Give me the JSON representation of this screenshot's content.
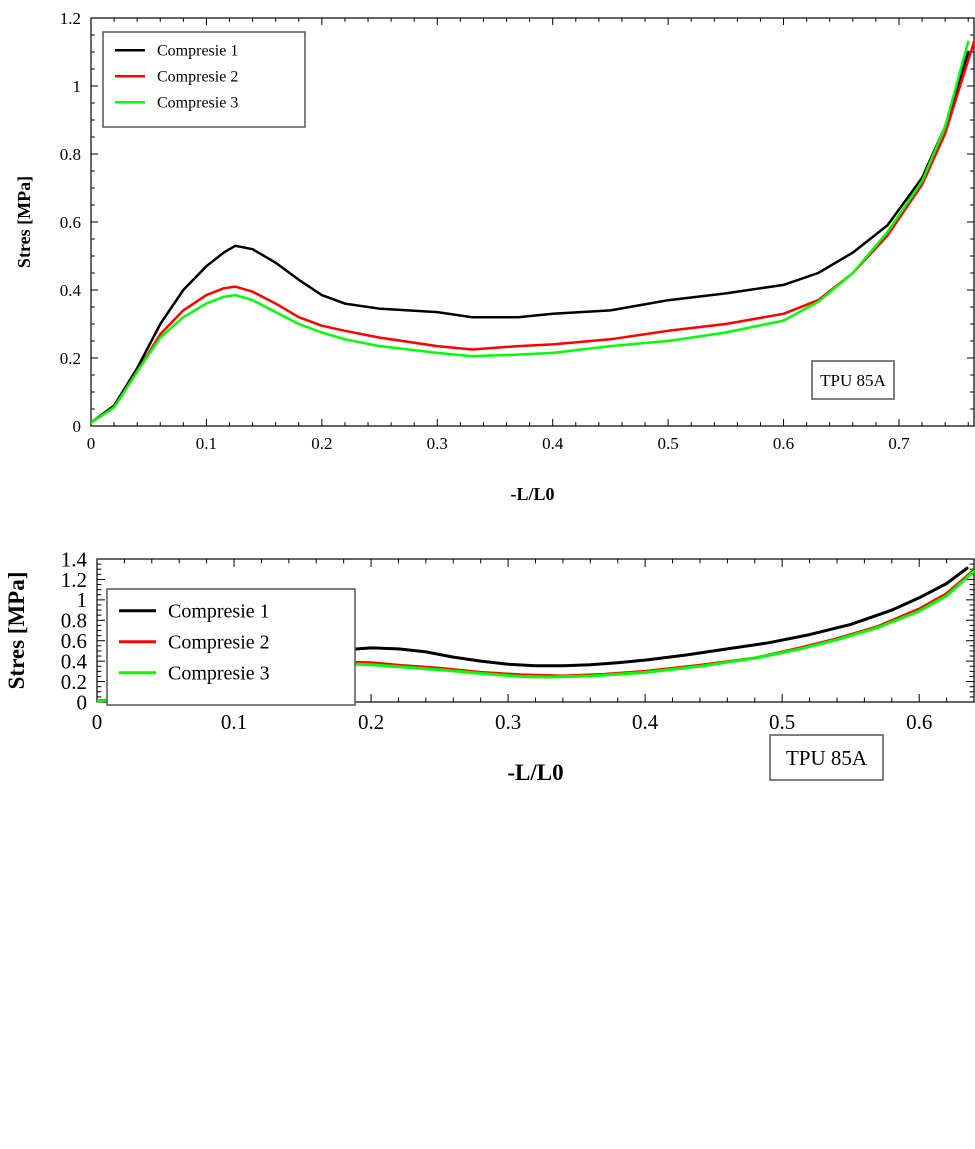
{
  "chart_data": [
    {
      "type": "line",
      "title": "",
      "xlabel": "-L/L0",
      "ylabel": "Stres [MPa]",
      "xlim": [
        0,
        0.765
      ],
      "ylim": [
        0,
        1.2
      ],
      "xticks": [
        0,
        0.1,
        0.2,
        0.3,
        0.4,
        0.5,
        0.6,
        0.7
      ],
      "xtick_labels": [
        "0",
        "0.1",
        "0.2",
        "0.3",
        "0.4",
        "0.5",
        "0.6",
        "0.7"
      ],
      "yticks": [
        0,
        0.2,
        0.4,
        0.6,
        0.8,
        1,
        1.2
      ],
      "ytick_labels": [
        "0",
        "0.2",
        "0.4",
        "0.6",
        "0.8",
        "1",
        "1.2"
      ],
      "grid": false,
      "legend": "top-left",
      "annotation": "TPU 85A",
      "series": [
        {
          "name": "Compresie 1",
          "color": "#000000",
          "points": [
            [
              0,
              0.01
            ],
            [
              0.02,
              0.06
            ],
            [
              0.04,
              0.17
            ],
            [
              0.06,
              0.3
            ],
            [
              0.08,
              0.4
            ],
            [
              0.1,
              0.47
            ],
            [
              0.115,
              0.51
            ],
            [
              0.125,
              0.53
            ],
            [
              0.14,
              0.52
            ],
            [
              0.16,
              0.48
            ],
            [
              0.18,
              0.43
            ],
            [
              0.2,
              0.385
            ],
            [
              0.22,
              0.36
            ],
            [
              0.25,
              0.345
            ],
            [
              0.3,
              0.335
            ],
            [
              0.33,
              0.32
            ],
            [
              0.37,
              0.32
            ],
            [
              0.4,
              0.33
            ],
            [
              0.45,
              0.34
            ],
            [
              0.5,
              0.37
            ],
            [
              0.55,
              0.39
            ],
            [
              0.6,
              0.415
            ],
            [
              0.63,
              0.45
            ],
            [
              0.66,
              0.51
            ],
            [
              0.69,
              0.59
            ],
            [
              0.72,
              0.73
            ],
            [
              0.74,
              0.88
            ],
            [
              0.76,
              1.1
            ]
          ]
        },
        {
          "name": "Compresie 2",
          "color": "#ff0000",
          "points": [
            [
              0,
              0.01
            ],
            [
              0.02,
              0.055
            ],
            [
              0.04,
              0.16
            ],
            [
              0.06,
              0.27
            ],
            [
              0.08,
              0.34
            ],
            [
              0.1,
              0.385
            ],
            [
              0.115,
              0.405
            ],
            [
              0.125,
              0.41
            ],
            [
              0.14,
              0.395
            ],
            [
              0.16,
              0.36
            ],
            [
              0.18,
              0.32
            ],
            [
              0.2,
              0.295
            ],
            [
              0.22,
              0.28
            ],
            [
              0.25,
              0.26
            ],
            [
              0.3,
              0.235
            ],
            [
              0.33,
              0.225
            ],
            [
              0.37,
              0.235
            ],
            [
              0.4,
              0.24
            ],
            [
              0.45,
              0.255
            ],
            [
              0.5,
              0.28
            ],
            [
              0.55,
              0.3
            ],
            [
              0.6,
              0.33
            ],
            [
              0.63,
              0.37
            ],
            [
              0.66,
              0.45
            ],
            [
              0.69,
              0.56
            ],
            [
              0.72,
              0.71
            ],
            [
              0.74,
              0.86
            ],
            [
              0.765,
              1.13
            ]
          ]
        },
        {
          "name": "Compresie 3",
          "color": "#00ff00",
          "points": [
            [
              0,
              0.01
            ],
            [
              0.02,
              0.055
            ],
            [
              0.04,
              0.16
            ],
            [
              0.06,
              0.26
            ],
            [
              0.08,
              0.32
            ],
            [
              0.1,
              0.36
            ],
            [
              0.115,
              0.38
            ],
            [
              0.125,
              0.385
            ],
            [
              0.14,
              0.37
            ],
            [
              0.16,
              0.335
            ],
            [
              0.18,
              0.3
            ],
            [
              0.2,
              0.275
            ],
            [
              0.22,
              0.255
            ],
            [
              0.25,
              0.235
            ],
            [
              0.3,
              0.215
            ],
            [
              0.33,
              0.205
            ],
            [
              0.37,
              0.21
            ],
            [
              0.4,
              0.215
            ],
            [
              0.45,
              0.235
            ],
            [
              0.5,
              0.25
            ],
            [
              0.55,
              0.275
            ],
            [
              0.6,
              0.31
            ],
            [
              0.63,
              0.365
            ],
            [
              0.66,
              0.45
            ],
            [
              0.69,
              0.57
            ],
            [
              0.72,
              0.72
            ],
            [
              0.74,
              0.88
            ],
            [
              0.76,
              1.13
            ]
          ]
        }
      ]
    },
    {
      "type": "line",
      "title": "",
      "xlabel": "-L/L0",
      "ylabel": "Stres [MPa]",
      "xlim": [
        0,
        0.64
      ],
      "ylim": [
        0,
        1.4
      ],
      "xticks": [
        0,
        0.1,
        0.2,
        0.3,
        0.4,
        0.5,
        0.6
      ],
      "xtick_labels": [
        "0",
        "0.1",
        "0.2",
        "0.3",
        "0.4",
        "0.5",
        "0.6"
      ],
      "yticks": [
        0,
        0.2,
        0.4,
        0.6,
        0.8,
        1,
        1.2,
        1.4
      ],
      "ytick_labels": [
        "0",
        "0.2",
        "0.4",
        "0.6",
        "0.8",
        "1",
        "1.2",
        "1.4"
      ],
      "grid": false,
      "legend": "top-left",
      "annotation": "TPU 85A",
      "series": [
        {
          "name": "Compresie 1",
          "color": "#000000",
          "points": [
            [
              0,
              0.01
            ],
            [
              0.02,
              0.03
            ],
            [
              0.04,
              0.09
            ],
            [
              0.06,
              0.17
            ],
            [
              0.08,
              0.25
            ],
            [
              0.1,
              0.31
            ],
            [
              0.12,
              0.37
            ],
            [
              0.14,
              0.42
            ],
            [
              0.16,
              0.47
            ],
            [
              0.18,
              0.51
            ],
            [
              0.2,
              0.53
            ],
            [
              0.22,
              0.52
            ],
            [
              0.24,
              0.49
            ],
            [
              0.26,
              0.44
            ],
            [
              0.28,
              0.4
            ],
            [
              0.3,
              0.37
            ],
            [
              0.32,
              0.355
            ],
            [
              0.34,
              0.355
            ],
            [
              0.36,
              0.365
            ],
            [
              0.38,
              0.385
            ],
            [
              0.4,
              0.41
            ],
            [
              0.43,
              0.46
            ],
            [
              0.46,
              0.52
            ],
            [
              0.49,
              0.58
            ],
            [
              0.52,
              0.66
            ],
            [
              0.55,
              0.76
            ],
            [
              0.58,
              0.9
            ],
            [
              0.6,
              1.02
            ],
            [
              0.62,
              1.16
            ],
            [
              0.635,
              1.31
            ]
          ]
        },
        {
          "name": "Compresie 2",
          "color": "#ff0000",
          "points": [
            [
              0,
              0.01
            ],
            [
              0.02,
              0.03
            ],
            [
              0.04,
              0.08
            ],
            [
              0.06,
              0.14
            ],
            [
              0.08,
              0.2
            ],
            [
              0.1,
              0.26
            ],
            [
              0.12,
              0.31
            ],
            [
              0.14,
              0.35
            ],
            [
              0.16,
              0.375
            ],
            [
              0.18,
              0.39
            ],
            [
              0.2,
              0.385
            ],
            [
              0.22,
              0.36
            ],
            [
              0.25,
              0.33
            ],
            [
              0.28,
              0.29
            ],
            [
              0.31,
              0.265
            ],
            [
              0.34,
              0.255
            ],
            [
              0.37,
              0.27
            ],
            [
              0.4,
              0.3
            ],
            [
              0.44,
              0.36
            ],
            [
              0.48,
              0.43
            ],
            [
              0.51,
              0.52
            ],
            [
              0.54,
              0.62
            ],
            [
              0.57,
              0.74
            ],
            [
              0.6,
              0.91
            ],
            [
              0.62,
              1.06
            ],
            [
              0.64,
              1.29
            ]
          ]
        },
        {
          "name": "Compresie 3",
          "color": "#00ff00",
          "points": [
            [
              0,
              0.01
            ],
            [
              0.02,
              0.03
            ],
            [
              0.04,
              0.08
            ],
            [
              0.06,
              0.14
            ],
            [
              0.08,
              0.2
            ],
            [
              0.1,
              0.25
            ],
            [
              0.12,
              0.3
            ],
            [
              0.14,
              0.34
            ],
            [
              0.16,
              0.365
            ],
            [
              0.18,
              0.375
            ],
            [
              0.2,
              0.365
            ],
            [
              0.22,
              0.345
            ],
            [
              0.25,
              0.315
            ],
            [
              0.28,
              0.28
            ],
            [
              0.31,
              0.25
            ],
            [
              0.33,
              0.245
            ],
            [
              0.36,
              0.255
            ],
            [
              0.4,
              0.29
            ],
            [
              0.44,
              0.35
            ],
            [
              0.48,
              0.43
            ],
            [
              0.51,
              0.51
            ],
            [
              0.54,
              0.61
            ],
            [
              0.57,
              0.73
            ],
            [
              0.6,
              0.89
            ],
            [
              0.62,
              1.04
            ],
            [
              0.64,
              1.28
            ]
          ]
        }
      ]
    }
  ]
}
